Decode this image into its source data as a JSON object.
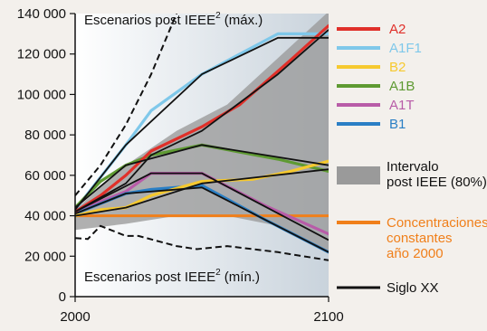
{
  "chart_data": {
    "type": "line",
    "x_range": [
      2000,
      2100
    ],
    "ylim": [
      0,
      140000
    ],
    "x_ticks": [
      {
        "value": 2000,
        "label": "2000"
      },
      {
        "value": 2100,
        "label": "2100"
      }
    ],
    "y_ticks": [
      {
        "value": 0,
        "label": "0"
      },
      {
        "value": 20000,
        "label": "20 000"
      },
      {
        "value": 40000,
        "label": "40 000"
      },
      {
        "value": 60000,
        "label": "60 000"
      },
      {
        "value": 80000,
        "label": "80 000"
      },
      {
        "value": 100000,
        "label": "100 000"
      },
      {
        "value": 120000,
        "label": "120 000"
      },
      {
        "value": 140000,
        "label": "140 000"
      }
    ],
    "annotations": {
      "max_prefix": "Escenarios post IEEE",
      "max_sup": "2",
      "max_suffix": " (máx.)",
      "min_prefix": "Escenarios post IEEE",
      "min_sup": "2",
      "min_suffix": " (mín.)"
    },
    "range_band": {
      "upper": [
        [
          2000,
          43000
        ],
        [
          2020,
          65000
        ],
        [
          2040,
          82000
        ],
        [
          2060,
          95000
        ],
        [
          2080,
          118000
        ],
        [
          2100,
          141000
        ]
      ],
      "lower": [
        [
          2000,
          33000
        ],
        [
          2020,
          36000
        ],
        [
          2040,
          40000
        ],
        [
          2060,
          40000
        ],
        [
          2080,
          35000
        ],
        [
          2100,
          22000
        ]
      ]
    },
    "bounds": {
      "max": [
        [
          2000,
          50000
        ],
        [
          2010,
          65000
        ],
        [
          2020,
          85000
        ],
        [
          2030,
          110000
        ],
        [
          2040,
          140000
        ],
        [
          2045,
          155000
        ]
      ],
      "min": [
        [
          2000,
          29000
        ],
        [
          2005,
          28500
        ],
        [
          2010,
          35000
        ],
        [
          2020,
          30000
        ],
        [
          2025,
          30000
        ],
        [
          2040,
          25000
        ],
        [
          2048,
          23500
        ],
        [
          2060,
          25000
        ],
        [
          2080,
          22000
        ],
        [
          2090,
          20000
        ],
        [
          2100,
          18000
        ]
      ]
    },
    "series": [
      {
        "name": "A1F1",
        "color": "#7fc8ea",
        "points": [
          [
            2000,
            43000
          ],
          [
            2020,
            75000
          ],
          [
            2030,
            92000
          ],
          [
            2050,
            110000
          ],
          [
            2080,
            130000
          ],
          [
            2100,
            130000
          ]
        ]
      },
      {
        "name": "A1B",
        "color": "#5e9a32",
        "points": [
          [
            2000,
            44000
          ],
          [
            2010,
            57000
          ],
          [
            2020,
            65000
          ],
          [
            2030,
            70000
          ],
          [
            2050,
            75000
          ],
          [
            2080,
            68000
          ],
          [
            2100,
            62000
          ]
        ]
      },
      {
        "name": "A1T",
        "color": "#b85ca8",
        "points": [
          [
            2000,
            42000
          ],
          [
            2020,
            52000
          ],
          [
            2030,
            61000
          ],
          [
            2050,
            61000
          ],
          [
            2075,
            45000
          ],
          [
            2100,
            31000
          ]
        ]
      },
      {
        "name": "B1",
        "color": "#2a7fc5",
        "points": [
          [
            2000,
            41000
          ],
          [
            2020,
            51000
          ],
          [
            2030,
            53000
          ],
          [
            2050,
            55000
          ],
          [
            2075,
            38000
          ],
          [
            2100,
            22000
          ]
        ]
      },
      {
        "name": "B2",
        "color": "#f6c92f",
        "points": [
          [
            2000,
            40000
          ],
          [
            2010,
            43000
          ],
          [
            2020,
            44000
          ],
          [
            2030,
            50000
          ],
          [
            2050,
            57000
          ],
          [
            2070,
            58000
          ],
          [
            2085,
            62000
          ],
          [
            2100,
            67000
          ]
        ]
      },
      {
        "name": "A2",
        "color": "#e0302a",
        "points": [
          [
            2000,
            42000
          ],
          [
            2010,
            50000
          ],
          [
            2020,
            60000
          ],
          [
            2030,
            72000
          ],
          [
            2050,
            84000
          ],
          [
            2065,
            95000
          ],
          [
            2085,
            117000
          ],
          [
            2100,
            134000
          ]
        ]
      }
    ],
    "black_lines": [
      [
        [
          2000,
          43000
        ],
        [
          2020,
          75000
        ],
        [
          2050,
          110000
        ],
        [
          2080,
          128000
        ],
        [
          2100,
          128000
        ]
      ],
      [
        [
          2000,
          44000
        ],
        [
          2020,
          65000
        ],
        [
          2050,
          75000
        ],
        [
          2100,
          65000
        ]
      ],
      [
        [
          2000,
          42000
        ],
        [
          2030,
          61000
        ],
        [
          2050,
          61000
        ],
        [
          2100,
          28000
        ]
      ],
      [
        [
          2000,
          41000
        ],
        [
          2020,
          51000
        ],
        [
          2050,
          54000
        ],
        [
          2100,
          22000
        ]
      ],
      [
        [
          2000,
          40000
        ],
        [
          2020,
          44000
        ],
        [
          2030,
          48000
        ],
        [
          2050,
          56000
        ],
        [
          2100,
          63000
        ]
      ],
      [
        [
          2000,
          42000
        ],
        [
          2020,
          56000
        ],
        [
          2030,
          70000
        ],
        [
          2050,
          82000
        ],
        [
          2080,
          110000
        ],
        [
          2100,
          132000
        ]
      ]
    ],
    "constant_line": [
      [
        2000,
        40000
      ],
      [
        2100,
        40000
      ]
    ],
    "legend": {
      "series_order": [
        "A2",
        "A1F1",
        "B2",
        "A1B",
        "A1T",
        "B1"
      ],
      "range_label_lines": [
        "Intervalo",
        "post IEEE (80%)"
      ],
      "constant": {
        "label_lines": [
          "Concentraciones",
          "constantes",
          "año 2000"
        ],
        "color": "#f07f1a"
      },
      "xx": {
        "label": "Siglo XX",
        "color": "#111111"
      }
    },
    "colors": {
      "band": "#9a9a9a",
      "plot_background": "#ffffff",
      "page_background": "#f3f0ec"
    }
  }
}
